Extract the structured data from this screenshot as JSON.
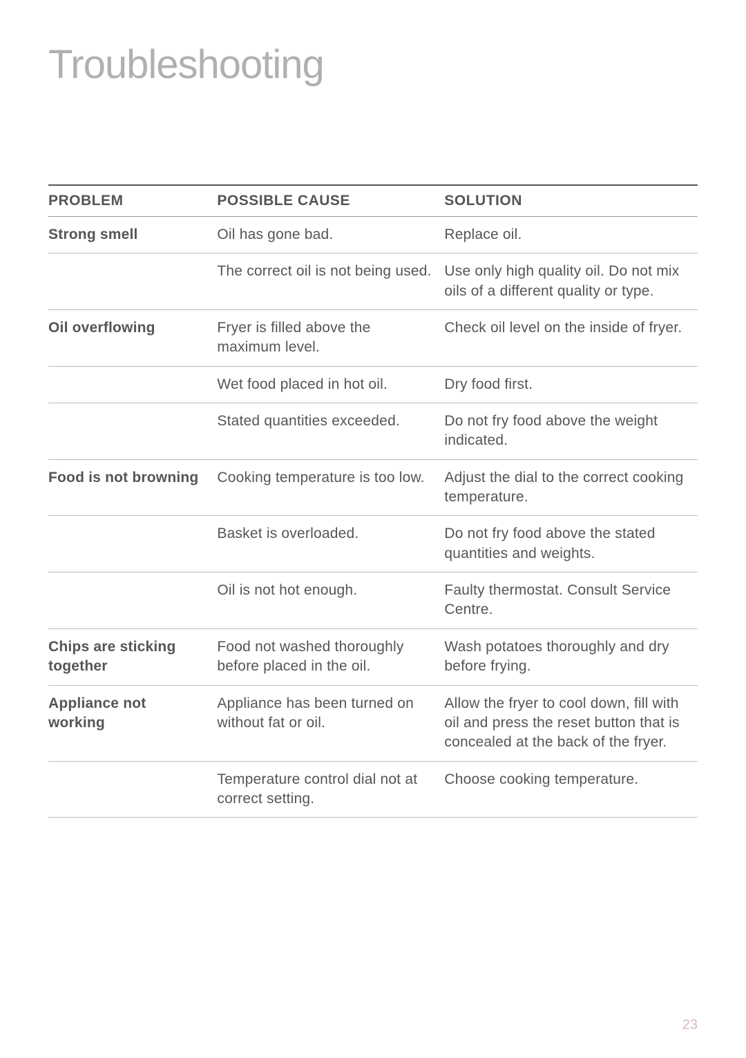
{
  "title": "Troubleshooting",
  "pageNumber": "23",
  "colors": {
    "title": "#b0b0b0",
    "text": "#555555",
    "ruleHeavy": "#555555",
    "ruleLight": "#bbbbbb",
    "pageNum": "#d7b9b9",
    "background": "#ffffff"
  },
  "typography": {
    "title_fontsize": 58,
    "title_weight": 300,
    "header_fontsize": 21,
    "header_weight": 700,
    "body_fontsize": 21,
    "line_height": 1.35
  },
  "table": {
    "headers": [
      "PROBLEM",
      "POSSIBLE CAUSE",
      "SOLUTION"
    ],
    "column_widths_pct": [
      26,
      35,
      39
    ],
    "rows": [
      {
        "problem": "Strong smell",
        "cause": "Oil has gone bad.",
        "solution": "Replace oil."
      },
      {
        "problem": "",
        "cause": "The correct oil is not being used.",
        "solution": "Use only high quality oil. Do not mix oils of a different quality or type."
      },
      {
        "problem": "Oil overflowing",
        "cause": "Fryer is filled above the maximum level.",
        "solution": "Check oil level on the inside of fryer."
      },
      {
        "problem": "",
        "cause": "Wet food placed in hot oil.",
        "solution": "Dry food first."
      },
      {
        "problem": "",
        "cause": "Stated quantities exceeded.",
        "solution": "Do not fry food above the weight indicated."
      },
      {
        "problem": "Food is not browning",
        "cause": "Cooking temperature is too low.",
        "solution": "Adjust the dial to the correct cooking temperature."
      },
      {
        "problem": "",
        "cause": "Basket is overloaded.",
        "solution": "Do not fry food above the stated quantities and weights."
      },
      {
        "problem": "",
        "cause": "Oil is not hot enough.",
        "solution": "Faulty thermostat. Consult Service Centre."
      },
      {
        "problem": "Chips are sticking together",
        "cause": "Food not washed thoroughly before placed in the oil.",
        "solution": "Wash potatoes thoroughly and dry before frying."
      },
      {
        "problem": "Appliance not working",
        "cause": "Appliance has been turned on without fat or oil.",
        "solution": "Allow the fryer to cool down, fill with oil and press the reset button that is concealed at the back of the fryer."
      },
      {
        "problem": "",
        "cause": "Temperature control dial not at correct setting.",
        "solution": "Choose cooking temperature."
      }
    ]
  }
}
